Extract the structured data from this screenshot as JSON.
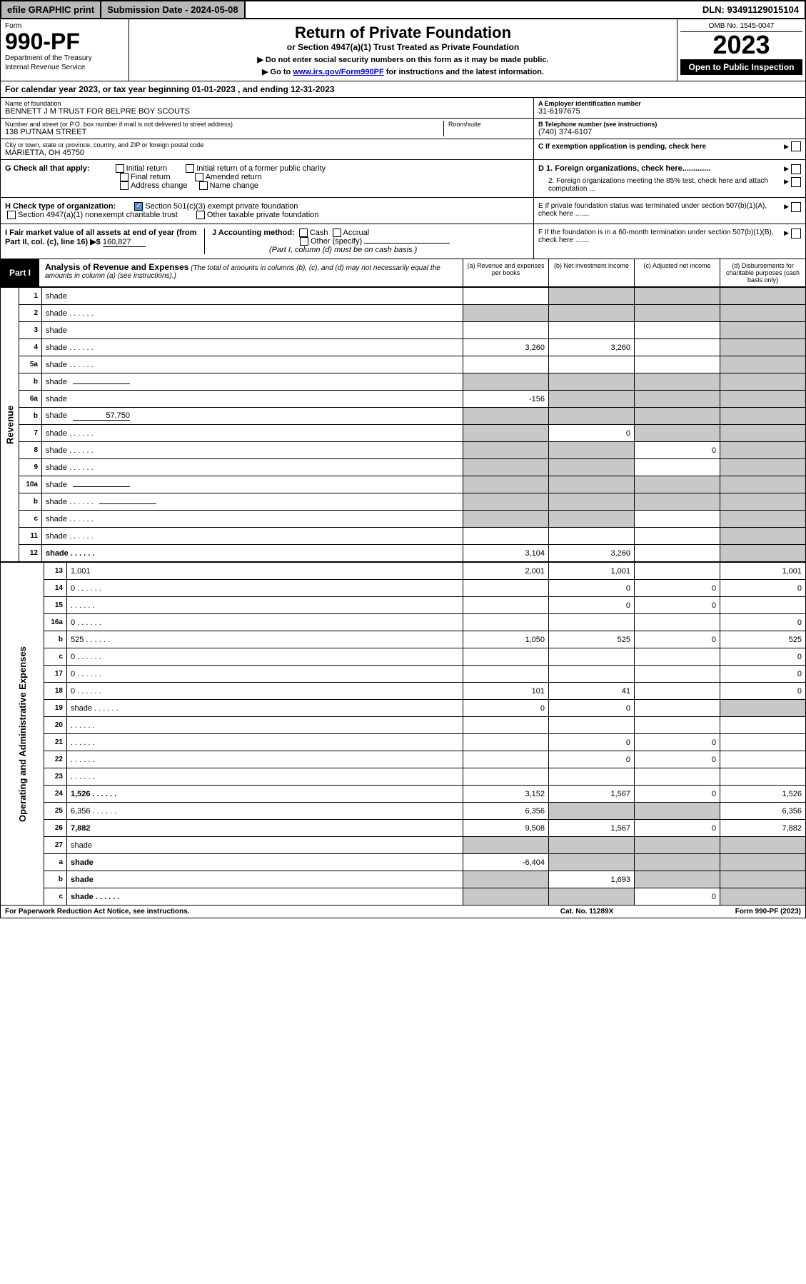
{
  "topbar": {
    "efile": "efile GRAPHIC print",
    "subdate_label": "Submission Date - 2024-05-08",
    "dln": "DLN: 93491129015104"
  },
  "header": {
    "form_word": "Form",
    "form_num": "990-PF",
    "dept": "Department of the Treasury",
    "irs": "Internal Revenue Service",
    "title": "Return of Private Foundation",
    "subtitle": "or Section 4947(a)(1) Trust Treated as Private Foundation",
    "note1": "▶ Do not enter social security numbers on this form as it may be made public.",
    "note2_pre": "▶ Go to ",
    "note2_link": "www.irs.gov/Form990PF",
    "note2_post": " for instructions and the latest information.",
    "omb": "OMB No. 1545-0047",
    "year": "2023",
    "open": "Open to Public Inspection"
  },
  "calrow": "For calendar year 2023, or tax year beginning 01-01-2023                          , and ending 12-31-2023",
  "info": {
    "name_label": "Name of foundation",
    "name": "BENNETT J M TRUST FOR BELPRE BOY SCOUTS",
    "addr_label": "Number and street (or P.O. box number if mail is not delivered to street address)",
    "addr": "138 PUTNAM STREET",
    "room_label": "Room/suite",
    "city_label": "City or town, state or province, country, and ZIP or foreign postal code",
    "city": "MARIETTA, OH  45750",
    "ein_label": "A Employer identification number",
    "ein": "31-6197675",
    "phone_label": "B Telephone number (see instructions)",
    "phone": "(740) 374-6107",
    "c_label": "C If exemption application is pending, check here"
  },
  "g": {
    "label": "G Check all that apply:",
    "initial": "Initial return",
    "former": "Initial return of a former public charity",
    "final": "Final return",
    "amended": "Amended return",
    "addr": "Address change",
    "namechg": "Name change"
  },
  "h": {
    "label": "H Check type of organization:",
    "s501": "Section 501(c)(3) exempt private foundation",
    "s4947": "Section 4947(a)(1) nonexempt charitable trust",
    "other": "Other taxable private foundation"
  },
  "d": {
    "d1": "D 1. Foreign organizations, check here.............",
    "d2": "2. Foreign organizations meeting the 85% test, check here and attach computation ...",
    "e": "E  If private foundation status was terminated under section 507(b)(1)(A), check here .......",
    "f": "F  If the foundation is in a 60-month termination under section 507(b)(1)(B), check here ......."
  },
  "i": {
    "label": "I Fair market value of all assets at end of year (from Part II, col. (c), line 16) ▶$",
    "val": "160,827"
  },
  "j": {
    "label": "J Accounting method:",
    "cash": "Cash",
    "accrual": "Accrual",
    "other": "Other (specify)",
    "note": "(Part I, column (d) must be on cash basis.)"
  },
  "part1": {
    "tab": "Part I",
    "title": "Analysis of Revenue and Expenses",
    "titlenote": " (The total of amounts in columns (b), (c), and (d) may not necessarily equal the amounts in column (a) (see instructions).)",
    "col_a": "(a) Revenue and expenses per books",
    "col_b": "(b) Net investment income",
    "col_c": "(c) Adjusted net income",
    "col_d": "(d) Disbursements for charitable purposes (cash basis only)"
  },
  "side": {
    "revenue": "Revenue",
    "expenses": "Operating and Administrative Expenses"
  },
  "rows": [
    {
      "n": "1",
      "d": "shade",
      "a": "",
      "b": "shade",
      "c": "shade"
    },
    {
      "n": "2",
      "d": "shade",
      "a": "shade",
      "b": "shade",
      "c": "shade",
      "bold": false,
      "dots": true
    },
    {
      "n": "3",
      "d": "shade",
      "a": "",
      "b": "",
      "c": ""
    },
    {
      "n": "4",
      "d": "shade",
      "a": "3,260",
      "b": "3,260",
      "c": "",
      "dots": true
    },
    {
      "n": "5a",
      "d": "shade",
      "a": "",
      "b": "",
      "c": "",
      "dots": true
    },
    {
      "n": "b",
      "d": "shade",
      "a": "shade",
      "b": "shade",
      "c": "shade",
      "inline": true
    },
    {
      "n": "6a",
      "d": "shade",
      "a": "-156",
      "b": "shade",
      "c": "shade"
    },
    {
      "n": "b",
      "d": "shade",
      "a": "shade",
      "b": "shade",
      "c": "shade",
      "inline": true,
      "inlineval": "57,750"
    },
    {
      "n": "7",
      "d": "shade",
      "a": "shade",
      "b": "0",
      "c": "shade",
      "dots": true
    },
    {
      "n": "8",
      "d": "shade",
      "a": "shade",
      "b": "shade",
      "c": "0",
      "dots": true
    },
    {
      "n": "9",
      "d": "shade",
      "a": "shade",
      "b": "shade",
      "c": "",
      "dots": true
    },
    {
      "n": "10a",
      "d": "shade",
      "a": "shade",
      "b": "shade",
      "c": "shade",
      "inline": true
    },
    {
      "n": "b",
      "d": "shade",
      "a": "shade",
      "b": "shade",
      "c": "shade",
      "inline": true,
      "dots": true
    },
    {
      "n": "c",
      "d": "shade",
      "a": "shade",
      "b": "shade",
      "c": "",
      "dots": true
    },
    {
      "n": "11",
      "d": "shade",
      "a": "",
      "b": "",
      "c": "",
      "dots": true
    },
    {
      "n": "12",
      "d": "shade",
      "a": "3,104",
      "b": "3,260",
      "c": "",
      "bold": true,
      "dots": true
    }
  ],
  "exprows": [
    {
      "n": "13",
      "d": "1,001",
      "a": "2,001",
      "b": "1,001",
      "c": ""
    },
    {
      "n": "14",
      "d": "0",
      "a": "",
      "b": "0",
      "c": "0",
      "dots": true
    },
    {
      "n": "15",
      "d": "",
      "a": "",
      "b": "0",
      "c": "0",
      "dots": true
    },
    {
      "n": "16a",
      "d": "0",
      "a": "",
      "b": "",
      "c": "",
      "dots": true
    },
    {
      "n": "b",
      "d": "525",
      "a": "1,050",
      "b": "525",
      "c": "0",
      "dots": true
    },
    {
      "n": "c",
      "d": "0",
      "a": "",
      "b": "",
      "c": "",
      "dots": true
    },
    {
      "n": "17",
      "d": "0",
      "a": "",
      "b": "",
      "c": "",
      "dots": true
    },
    {
      "n": "18",
      "d": "0",
      "a": "101",
      "b": "41",
      "c": "",
      "dots": true
    },
    {
      "n": "19",
      "d": "shade",
      "a": "0",
      "b": "0",
      "c": "",
      "dots": true
    },
    {
      "n": "20",
      "d": "",
      "a": "",
      "b": "",
      "c": "",
      "dots": true
    },
    {
      "n": "21",
      "d": "",
      "a": "",
      "b": "0",
      "c": "0",
      "dots": true
    },
    {
      "n": "22",
      "d": "",
      "a": "",
      "b": "0",
      "c": "0",
      "dots": true
    },
    {
      "n": "23",
      "d": "",
      "a": "",
      "b": "",
      "c": "",
      "dots": true
    },
    {
      "n": "24",
      "d": "1,526",
      "a": "3,152",
      "b": "1,567",
      "c": "0",
      "bold": true,
      "dots": true
    },
    {
      "n": "25",
      "d": "6,356",
      "a": "6,356",
      "b": "shade",
      "c": "shade",
      "dots": true
    },
    {
      "n": "26",
      "d": "7,882",
      "a": "9,508",
      "b": "1,567",
      "c": "0",
      "bold": true
    },
    {
      "n": "27",
      "d": "shade",
      "a": "shade",
      "b": "shade",
      "c": "shade"
    },
    {
      "n": "a",
      "d": "shade",
      "a": "-6,404",
      "b": "shade",
      "c": "shade",
      "bold": true
    },
    {
      "n": "b",
      "d": "shade",
      "a": "shade",
      "b": "1,693",
      "c": "shade",
      "bold": true
    },
    {
      "n": "c",
      "d": "shade",
      "a": "shade",
      "b": "shade",
      "c": "0",
      "bold": true,
      "dots": true
    }
  ],
  "footer": {
    "l": "For Paperwork Reduction Act Notice, see instructions.",
    "c": "Cat. No. 11289X",
    "r": "Form 990-PF (2023)"
  }
}
